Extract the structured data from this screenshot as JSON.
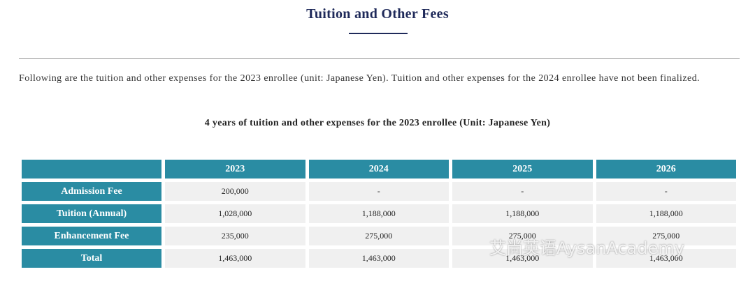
{
  "header": {
    "title": "Tuition and Other Fees"
  },
  "intro": "Following are the tuition and other expenses for the 2023 enrollee (unit: Japanese Yen). Tuition and other expenses for the 2024 enrollee have not been finalized.",
  "table": {
    "caption": "4 years of tuition and other expenses for the 2023 enrollee (Unit: Japanese Yen)",
    "columns": [
      "2023",
      "2024",
      "2025",
      "2026"
    ],
    "rows": [
      {
        "label": "Admission Fee",
        "cells": [
          "200,000",
          "-",
          "-",
          "-"
        ]
      },
      {
        "label": "Tuition (Annual)",
        "cells": [
          "1,028,000",
          "1,188,000",
          "1,188,000",
          "1,188,000"
        ]
      },
      {
        "label": "Enhancement Fee",
        "cells": [
          "235,000",
          "275,000",
          "275,000",
          "275,000"
        ]
      },
      {
        "label": "Total",
        "cells": [
          "1,463,000",
          "1,463,000",
          "1,463,000",
          "1,463,000"
        ]
      }
    ]
  },
  "watermark": "艾尚英语AysanAcademy"
}
